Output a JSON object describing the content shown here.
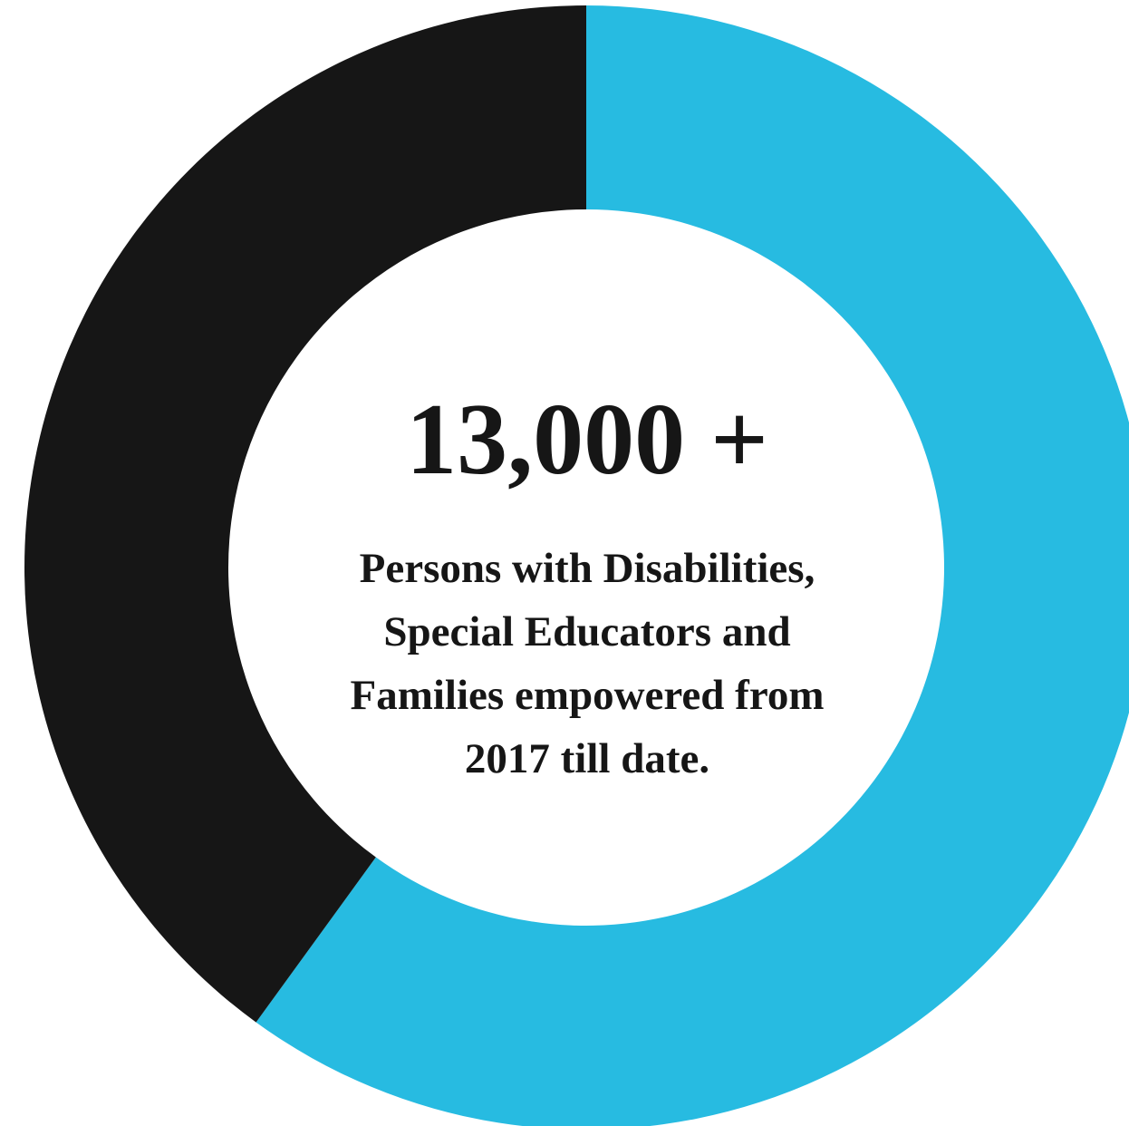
{
  "chart_data": {
    "type": "pie",
    "style": "donut",
    "slices": [
      {
        "value": 60,
        "color": "#27bbe1"
      },
      {
        "value": 40,
        "color": "#161616"
      }
    ],
    "start_angle_deg": 0,
    "direction": "clockwise"
  },
  "center": {
    "headline": "13,000 +",
    "caption_lines": [
      "Persons with Disabilities,",
      "Special Educators and",
      "Families empowered from",
      "2017 till date."
    ]
  }
}
